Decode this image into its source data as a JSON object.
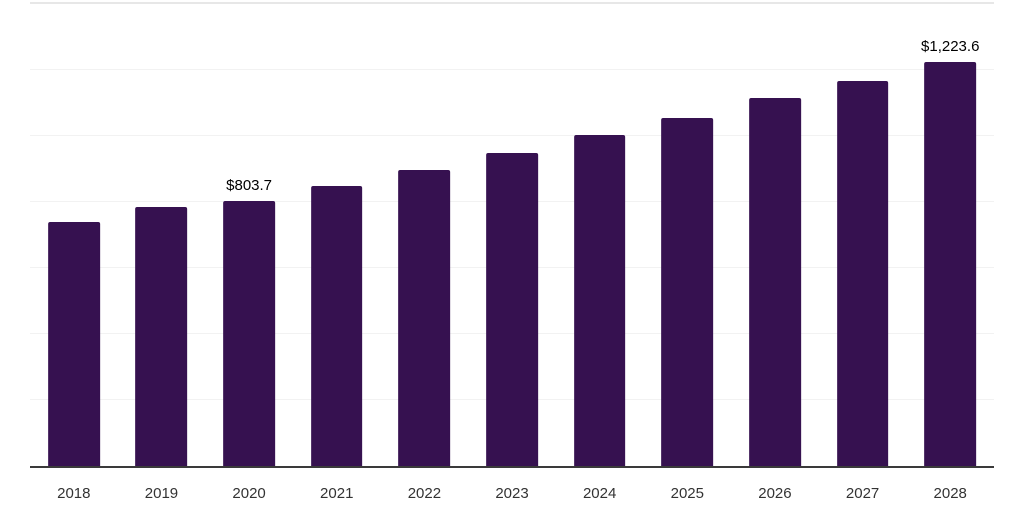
{
  "chart_data": {
    "type": "bar",
    "categories": [
      "2018",
      "2019",
      "2020",
      "2021",
      "2022",
      "2023",
      "2024",
      "2025",
      "2026",
      "2027",
      "2028"
    ],
    "values": [
      740,
      786,
      803.7,
      849,
      898,
      950,
      1002,
      1055,
      1115,
      1168,
      1223.6
    ],
    "data_labels": [
      "",
      "",
      "$803.7",
      "",
      "",
      "",
      "",
      "",
      "",
      "",
      "$1,223.6"
    ],
    "title": "",
    "xlabel": "",
    "ylabel": "",
    "ylim": [
      0,
      1400
    ],
    "gridline_step": 200,
    "grid_on": true,
    "legend": "none",
    "colors": {
      "bar": "#361150",
      "gridline": "#f2f2f2",
      "top_border": "#e7e7e7",
      "axis_line": "#3a3a3a",
      "value_label": "#000000",
      "tick_label": "#333333",
      "background": "#ffffff"
    }
  }
}
